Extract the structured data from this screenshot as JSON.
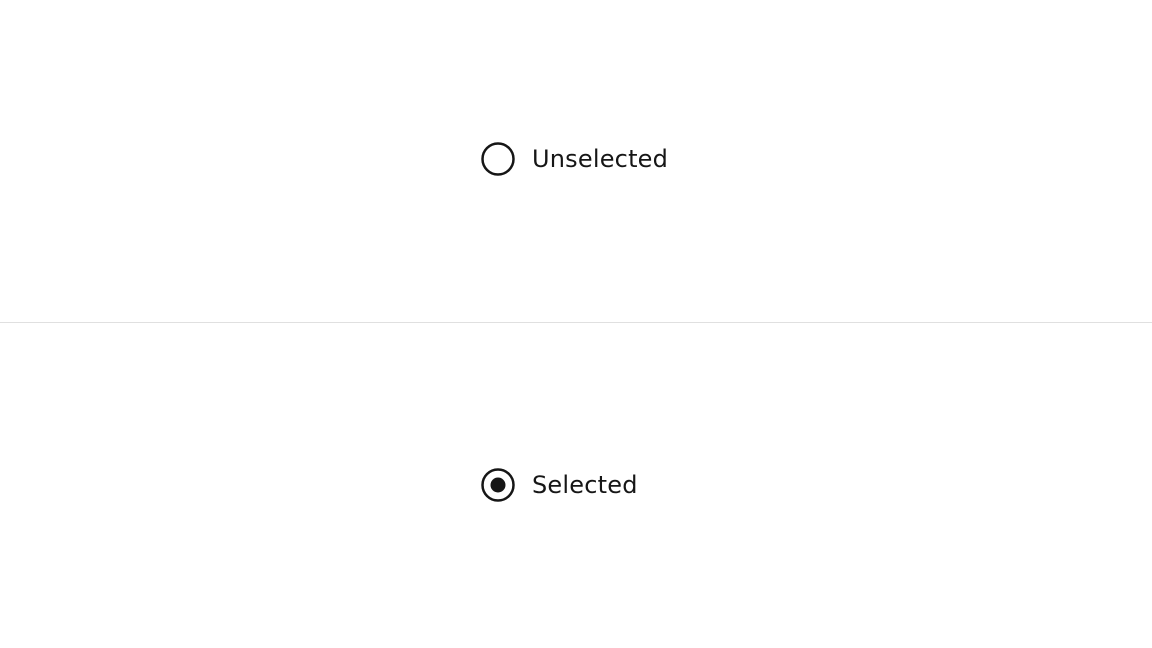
{
  "options": [
    {
      "label": "Unselected",
      "checked": false
    },
    {
      "label": "Selected",
      "checked": true
    }
  ],
  "colors": {
    "text": "#161616",
    "radio_stroke": "#161616",
    "divider": "#e0e0e0",
    "background": "#ffffff"
  },
  "icons": {
    "unselected": "radio-unchecked-icon",
    "selected": "radio-checked-icon"
  }
}
